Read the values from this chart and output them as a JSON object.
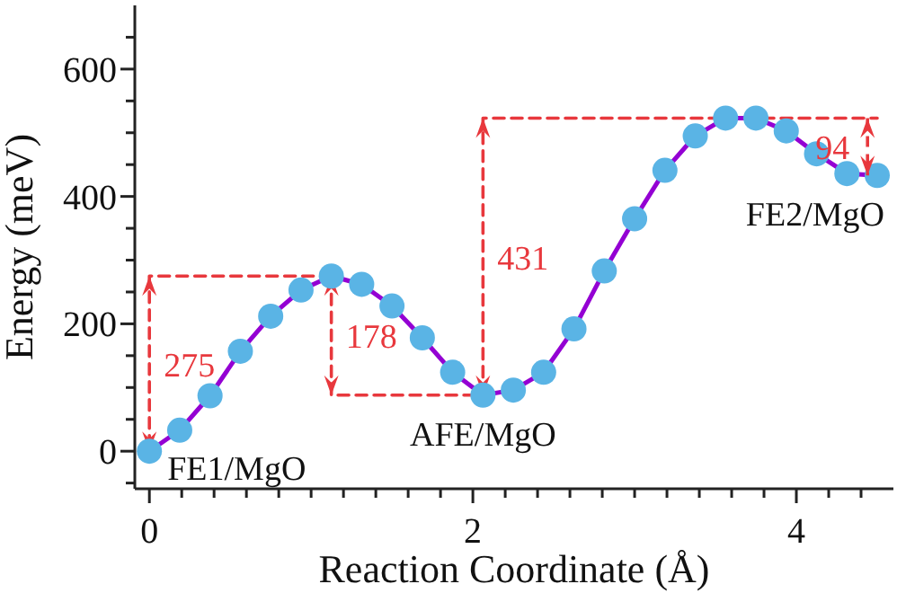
{
  "chart_data": {
    "type": "line",
    "xlabel": "Reaction Coordinate (Å)",
    "ylabel": "Energy (meV)",
    "xlim": [
      -0.09,
      4.6
    ],
    "ylim": [
      -59,
      700
    ],
    "xticks": [
      0,
      {
        "value": 0.2,
        "label": null
      },
      {
        "value": 0.4,
        "label": null
      },
      {
        "value": 0.6,
        "label": null
      },
      {
        "value": 0.8,
        "label": null
      },
      {
        "value": 1,
        "label": null
      },
      {
        "value": 1.2,
        "label": null
      },
      {
        "value": 1.4,
        "label": null
      },
      {
        "value": 1.6,
        "label": null
      },
      {
        "value": 1.8,
        "label": null
      },
      2,
      {
        "value": 2.2,
        "label": null
      },
      {
        "value": 2.4,
        "label": null
      },
      {
        "value": 2.6,
        "label": null
      },
      {
        "value": 2.8,
        "label": null
      },
      {
        "value": 3,
        "label": null
      },
      {
        "value": 3.2,
        "label": null
      },
      {
        "value": 3.4,
        "label": null
      },
      {
        "value": 3.6,
        "label": null
      },
      {
        "value": 3.8,
        "label": null
      },
      4,
      {
        "value": 4.2,
        "label": null
      },
      {
        "value": 4.4,
        "label": null
      }
    ],
    "yticks": [
      {
        "value": -50,
        "label": null
      },
      0,
      {
        "value": 50,
        "label": null
      },
      {
        "value": 100,
        "label": null
      },
      {
        "value": 150,
        "label": null
      },
      200,
      {
        "value": 250,
        "label": null
      },
      {
        "value": 300,
        "label": null
      },
      {
        "value": 350,
        "label": null
      },
      400,
      {
        "value": 450,
        "label": null
      },
      {
        "value": 500,
        "label": null
      },
      {
        "value": 550,
        "label": null
      },
      600,
      {
        "value": 650,
        "label": null
      }
    ],
    "grid": false,
    "marker": "circle",
    "line_style": "solid",
    "series": [
      {
        "color": "#9400d3",
        "colors": [
          "#5ab4e5",
          "#5ab4e5",
          "#5ab4e5",
          "#5ab4e5",
          "#5ab4e5",
          "#5ab4e5",
          "#5ab4e5",
          "#5ab4e5",
          "#5ab4e5",
          "#5ab4e5",
          "#5ab4e5",
          "#5ab4e5",
          "#5ab4e5",
          "#5ab4e5",
          "#5ab4e5",
          "#5ab4e5",
          "#5ab4e5",
          "#5ab4e5",
          "#5ab4e5",
          "#5ab4e5",
          "#5ab4e5",
          "#5ab4e5",
          "#5ab4e5",
          "#5ab4e5",
          "#5ab4e5"
        ],
        "x": [
          0,
          0.1875,
          0.375,
          0.5625,
          0.75,
          0.9375,
          1.125,
          1.3125,
          1.5,
          1.6875,
          1.875,
          2.0625,
          2.25,
          2.4375,
          2.625,
          2.8125,
          3,
          3.1875,
          3.375,
          3.5625,
          3.75,
          3.9375,
          4.125,
          4.3125,
          4.5
        ],
        "values": [
          0,
          33,
          87,
          157,
          212,
          253,
          275,
          262,
          228,
          178,
          124,
          88,
          96,
          124,
          192,
          283,
          365,
          441,
          495,
          523,
          523,
          503,
          467,
          436,
          433
        ]
      },
      {
        "type": "line",
        "color": "#e8383d",
        "line_style": "dashed",
        "marker": "none",
        "x": [
          1.125,
          0,
          0
        ],
        "values": [
          275,
          275,
          0
        ]
      },
      {
        "type": "line",
        "color": "#e8383d",
        "line_style": "dashed",
        "marker": "none",
        "x": [
          1.125,
          1.125,
          2.0625
        ],
        "values": [
          275,
          88,
          88
        ]
      },
      {
        "type": "line",
        "color": "#e8383d",
        "line_style": "dashed",
        "marker": "none",
        "x": [
          2.0625,
          2.0625,
          4.5
        ],
        "values": [
          88,
          523,
          523
        ]
      },
      {
        "type": "line",
        "color": "#e8383d",
        "line_style": "dashed",
        "marker": "none",
        "x": [
          4.44,
          4.44
        ],
        "values": [
          523,
          433
        ]
      }
    ],
    "annotations": [
      {
        "text": "275",
        "x": 0,
        "y": 137
      },
      {
        "text": "178",
        "x": 1.125,
        "y": 182
      },
      {
        "text": "431",
        "x": 2.0625,
        "y": 305
      },
      {
        "text": "94",
        "x": 4.44,
        "y": 478
      },
      {
        "text": "FE1/MgO",
        "x": 0,
        "y": 0
      },
      {
        "text": "AFE/MgO",
        "x": 2.0625,
        "y": 88
      },
      {
        "text": "FE2/MgO",
        "x": 4.5,
        "y": 433
      }
    ]
  }
}
